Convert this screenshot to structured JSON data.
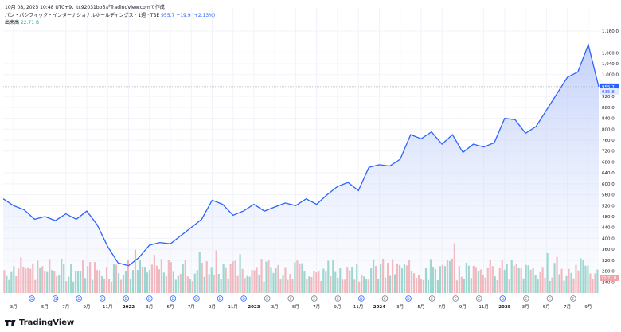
{
  "header": {
    "timestamp_line": "10月 08, 2025 10:48 UTC+9、tc92031bb6がTradingView.comで作成",
    "symbol_name": "パン・パシフィック・インターナショナルホールディングス · 1週 · TSE",
    "price": "955.7",
    "change": "+19.9 (+2.13%)",
    "volume_label": "出来高",
    "volume_value": "22.71 B"
  },
  "branding": {
    "logo_text": "TradingView",
    "logo_icon": "tradingview-logo-icon"
  },
  "colors": {
    "line": "#2962ff",
    "area_top": "#b9c9f9",
    "vol_up": "#7fcbbd",
    "vol_down": "#f1a3a8",
    "price_label_bg": "#2962ff",
    "vol_label_bg": "#f1a3a8",
    "grid": "#f0f3fa",
    "crosshair": "#b2b5be"
  },
  "chart_data": {
    "type": "area",
    "title": "パン・パシフィック・インターナショナルホールディングス · 1週 · TSE",
    "ylabel": "",
    "xlabel": "",
    "ylim": [
      200,
      1180
    ],
    "price_ticks": [
      1160,
      1080,
      1040,
      1000,
      920,
      880,
      840,
      800,
      760,
      720,
      680,
      640,
      600,
      560,
      520,
      480,
      440,
      400,
      360,
      320,
      280,
      240
    ],
    "price_tick_labels": [
      "1,160.0",
      "1,080.0",
      "1,040.0",
      "1,000.0",
      "920.0",
      "880.0",
      "840.0",
      "800.0",
      "760.0",
      "720.0",
      "680.0",
      "640.0",
      "600.0",
      "560.0",
      "520.0",
      "480.0",
      "440.0",
      "400.0",
      "360.0",
      "320.0",
      "280.0",
      "240.0"
    ],
    "last_price": 955.7,
    "last_price_label": "955.7",
    "secondary_label": "935.8",
    "volume_label_value": "22.71 B",
    "x_range": [
      "2021-01",
      "2025-10"
    ],
    "x_ticks": [
      {
        "date": "2021-02",
        "label": "3月"
      },
      {
        "date": "2021-05",
        "label": "5月"
      },
      {
        "date": "2021-07",
        "label": "7月"
      },
      {
        "date": "2021-09",
        "label": "9月"
      },
      {
        "date": "2021-11",
        "label": "11月"
      },
      {
        "date": "2022-01",
        "label": "2022"
      },
      {
        "date": "2022-03",
        "label": "3月"
      },
      {
        "date": "2022-05",
        "label": "5月"
      },
      {
        "date": "2022-07",
        "label": "7月"
      },
      {
        "date": "2022-09",
        "label": "9月"
      },
      {
        "date": "2022-11",
        "label": "11月"
      },
      {
        "date": "2023-01",
        "label": "2023"
      },
      {
        "date": "2023-03",
        "label": "3月"
      },
      {
        "date": "2023-05",
        "label": "5月"
      },
      {
        "date": "2023-07",
        "label": "7月"
      },
      {
        "date": "2023-09",
        "label": "9月"
      },
      {
        "date": "2023-11",
        "label": "11月"
      },
      {
        "date": "2024-01",
        "label": "2024"
      },
      {
        "date": "2024-03",
        "label": "3月"
      },
      {
        "date": "2024-05",
        "label": "5月"
      },
      {
        "date": "2024-07",
        "label": "7月"
      },
      {
        "date": "2024-09",
        "label": "9月"
      },
      {
        "date": "2024-11",
        "label": "11月"
      },
      {
        "date": "2025-01",
        "label": "2025"
      },
      {
        "date": "2025-03",
        "label": "3月"
      },
      {
        "date": "2025-05",
        "label": "5月"
      },
      {
        "date": "2025-07",
        "label": "7月"
      },
      {
        "date": "2025-09",
        "label": "9月"
      }
    ],
    "series": [
      {
        "values_by_month": [
          [
            "2021-01",
            545
          ],
          [
            "2021-02",
            520
          ],
          [
            "2021-03",
            505
          ],
          [
            "2021-04",
            470
          ],
          [
            "2021-05",
            480
          ],
          [
            "2021-06",
            465
          ],
          [
            "2021-07",
            490
          ],
          [
            "2021-08",
            470
          ],
          [
            "2021-09",
            500
          ],
          [
            "2021-10",
            450
          ],
          [
            "2021-11",
            370
          ],
          [
            "2021-12",
            310
          ],
          [
            "2022-01",
            300
          ],
          [
            "2022-02",
            330
          ],
          [
            "2022-03",
            375
          ],
          [
            "2022-04",
            385
          ],
          [
            "2022-05",
            380
          ],
          [
            "2022-06",
            410
          ],
          [
            "2022-07",
            440
          ],
          [
            "2022-08",
            470
          ],
          [
            "2022-09",
            540
          ],
          [
            "2022-10",
            525
          ],
          [
            "2022-11",
            485
          ],
          [
            "2022-12",
            500
          ],
          [
            "2023-01",
            525
          ],
          [
            "2023-02",
            500
          ],
          [
            "2023-03",
            515
          ],
          [
            "2023-04",
            530
          ],
          [
            "2023-05",
            520
          ],
          [
            "2023-06",
            545
          ],
          [
            "2023-07",
            525
          ],
          [
            "2023-08",
            560
          ],
          [
            "2023-09",
            590
          ],
          [
            "2023-10",
            605
          ],
          [
            "2023-11",
            575
          ],
          [
            "2023-12",
            660
          ],
          [
            "2024-01",
            670
          ],
          [
            "2024-02",
            665
          ],
          [
            "2024-03",
            690
          ],
          [
            "2024-04",
            780
          ],
          [
            "2024-05",
            765
          ],
          [
            "2024-06",
            790
          ],
          [
            "2024-07",
            745
          ],
          [
            "2024-08",
            780
          ],
          [
            "2024-09",
            715
          ],
          [
            "2024-10",
            745
          ],
          [
            "2024-11",
            735
          ],
          [
            "2024-12",
            750
          ],
          [
            "2025-01",
            840
          ],
          [
            "2025-02",
            835
          ],
          [
            "2025-03",
            785
          ],
          [
            "2025-04",
            810
          ],
          [
            "2025-05",
            870
          ],
          [
            "2025-06",
            930
          ],
          [
            "2025-07",
            990
          ],
          [
            "2025-08",
            1010
          ],
          [
            "2025-09",
            1110
          ],
          [
            "2025-10",
            955.7
          ]
        ]
      }
    ],
    "event_markers": [
      "D",
      "D",
      "D",
      "D",
      "D",
      "D",
      "D",
      "D",
      "D",
      "D",
      "E",
      "E",
      "E",
      "E",
      "D",
      "E",
      "D",
      "E",
      "E",
      "E",
      "D",
      "E",
      "E",
      "E"
    ]
  }
}
